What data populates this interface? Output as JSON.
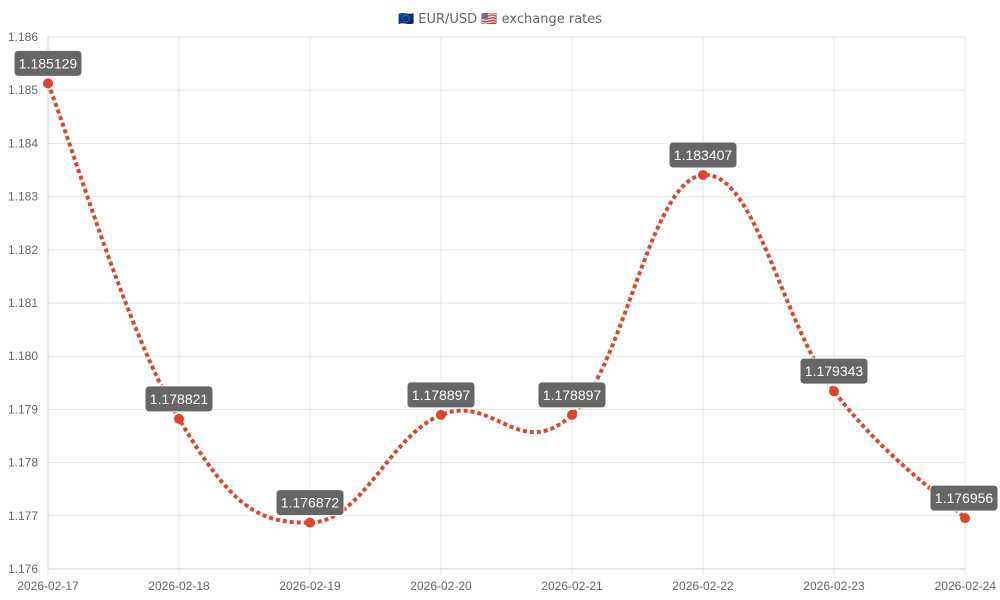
{
  "chart_data": {
    "type": "line",
    "title": "🇪🇺 EUR/USD 🇺🇸 exchange rates",
    "xlabel": "",
    "ylabel": "",
    "categories": [
      "2026-02-17",
      "2026-02-18",
      "2026-02-19",
      "2026-02-20",
      "2026-02-21",
      "2026-02-22",
      "2026-02-23",
      "2026-02-24"
    ],
    "series": [
      {
        "values": [
          1.185129,
          1.178821,
          1.176872,
          1.178897,
          1.178897,
          1.183407,
          1.179343,
          1.176956
        ],
        "data_labels": [
          "1.185129",
          "1.178821",
          "1.176872",
          "1.178897",
          "1.178897",
          "1.183407",
          "1.179343",
          "1.176956"
        ],
        "color": "#e0442a",
        "line_style": "dotted",
        "smooth": true
      }
    ],
    "ylim": [
      1.176,
      1.186
    ],
    "yticks": [
      1.176,
      1.177,
      1.178,
      1.179,
      1.18,
      1.181,
      1.182,
      1.183,
      1.184,
      1.185,
      1.186
    ],
    "ytick_labels": [
      "1.176",
      "1.177",
      "1.178",
      "1.179",
      "1.180",
      "1.181",
      "1.182",
      "1.183",
      "1.184",
      "1.185",
      "1.186"
    ],
    "grid": true,
    "legend": "none",
    "colors": {
      "line": "#e0442a",
      "point": "#e0442a",
      "label_bg": "#666666",
      "label_text": "#ffffff",
      "grid": "#e5e5e5",
      "axis_text": "#666666"
    }
  }
}
